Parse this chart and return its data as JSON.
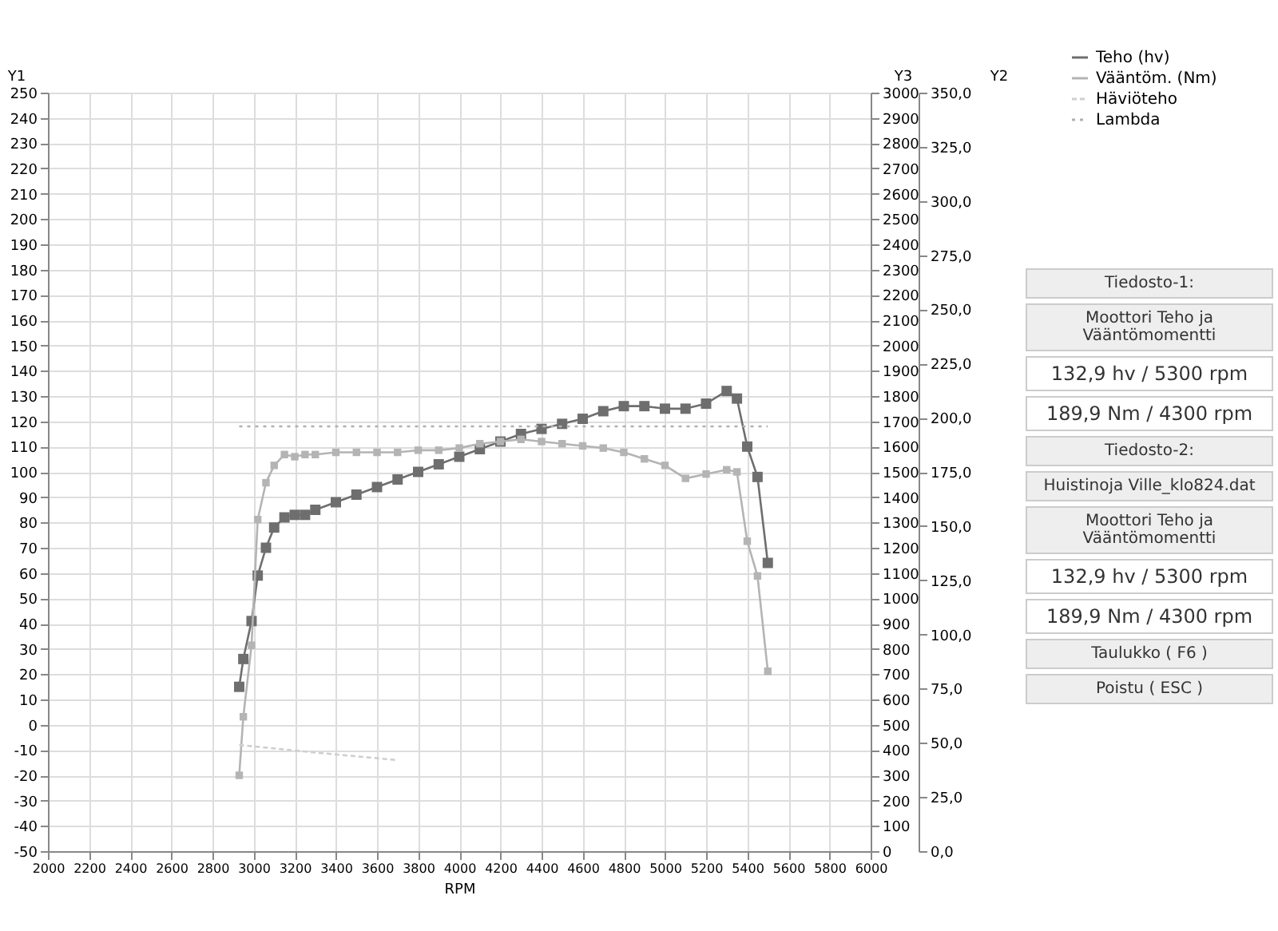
{
  "chart_data": {
    "type": "line",
    "xlabel": "RPM",
    "ylabel": "Y1",
    "y2label": "Y2",
    "y3label": "Y3",
    "x": [
      2930,
      2950,
      2990,
      3020,
      3060,
      3100,
      3150,
      3200,
      3250,
      3300,
      3400,
      3500,
      3600,
      3700,
      3800,
      3900,
      4000,
      4100,
      4200,
      4300,
      4400,
      4500,
      4600,
      4700,
      4800,
      4900,
      5000,
      5100,
      5200,
      5300,
      5350,
      5400,
      5450,
      5500
    ],
    "series": [
      {
        "name": "Teho (hv)",
        "color": "#6e6e6e",
        "marker": "square",
        "line_style": "solid",
        "values": [
          15,
          26,
          41,
          59,
          70,
          78,
          82,
          83,
          83,
          85,
          88,
          91,
          94,
          97,
          100,
          103,
          106,
          109,
          112,
          115,
          117,
          119,
          121,
          124,
          126,
          126,
          125,
          125,
          127,
          132,
          129,
          110,
          98,
          64
        ]
      },
      {
        "name": "Vääntöm. (Nm)",
        "color": "#b4b4b4",
        "marker": "square",
        "line_style": "solid",
        "axis": "y2",
        "values": [
          35,
          62,
          95,
          153,
          170,
          178,
          183,
          182,
          183,
          183,
          184,
          184,
          184,
          184,
          185,
          185,
          186,
          188,
          189,
          190,
          189,
          188,
          187,
          186,
          184,
          181,
          178,
          172,
          174,
          176,
          175,
          143,
          127,
          83
        ]
      },
      {
        "name": "Häviöteho",
        "color": "#cfcfcf",
        "marker": "none",
        "line_style": "dashed",
        "x": [
          2930,
          3300,
          3700
        ],
        "values": [
          -8,
          -11,
          -14
        ]
      },
      {
        "name": "Lambda",
        "color": "#b0b0b0",
        "marker": "none",
        "line_style": "dotted",
        "axis": "y3",
        "x": [
          2930,
          5500
        ],
        "values": [
          1680,
          1680
        ]
      }
    ],
    "xlim": [
      2000,
      6000
    ],
    "xticks": [
      2000,
      2200,
      2400,
      2600,
      2800,
      3000,
      3200,
      3400,
      3600,
      3800,
      4000,
      4200,
      4400,
      4600,
      4800,
      5000,
      5200,
      5400,
      5600,
      5800,
      6000
    ],
    "ylim": [
      -50,
      250
    ],
    "yticks": [
      -50,
      -40,
      -30,
      -20,
      -10,
      0,
      10,
      20,
      30,
      40,
      50,
      60,
      70,
      80,
      90,
      100,
      110,
      120,
      130,
      140,
      150,
      160,
      170,
      180,
      190,
      200,
      210,
      220,
      230,
      240,
      250
    ],
    "y2lim": [
      0,
      350
    ],
    "y2ticks": [
      {
        "value": 0,
        "label": "0,0"
      },
      {
        "value": 25,
        "label": "25,0"
      },
      {
        "value": 50,
        "label": "50,0"
      },
      {
        "value": 75,
        "label": "75,0"
      },
      {
        "value": 100,
        "label": "100,0"
      },
      {
        "value": 125,
        "label": "125,0"
      },
      {
        "value": 150,
        "label": "150,0"
      },
      {
        "value": 175,
        "label": "175,0"
      },
      {
        "value": 200,
        "label": "200,0"
      },
      {
        "value": 225,
        "label": "225,0"
      },
      {
        "value": 250,
        "label": "250,0"
      },
      {
        "value": 275,
        "label": "275,0"
      },
      {
        "value": 300,
        "label": "300,0"
      },
      {
        "value": 325,
        "label": "325,0"
      },
      {
        "value": 350,
        "label": "350,0"
      }
    ],
    "y3lim": [
      0,
      3000
    ],
    "y3ticks": [
      0,
      100,
      200,
      300,
      400,
      500,
      600,
      700,
      800,
      900,
      1000,
      1100,
      1200,
      1300,
      1400,
      1500,
      1600,
      1700,
      1800,
      1900,
      2000,
      2100,
      2200,
      2300,
      2400,
      2500,
      2600,
      2700,
      2800,
      2900,
      3000
    ],
    "grid": true,
    "legend": "top right",
    "annotations": [
      "Tiedosto-1:",
      "Moottori Teho ja Vääntömomentti",
      "132,9 hv / 5300 rpm",
      "189,9 Nm / 4300 rpm",
      "Tiedosto-2:",
      "Huistinoja Ville_klo824.dat",
      "Moottori Teho ja Vääntömomentti",
      "132,9 hv / 5300 rpm",
      "189,9 Nm / 4300 rpm",
      "Taulukko ( F6 )",
      "Poistu ( ESC )"
    ]
  }
}
